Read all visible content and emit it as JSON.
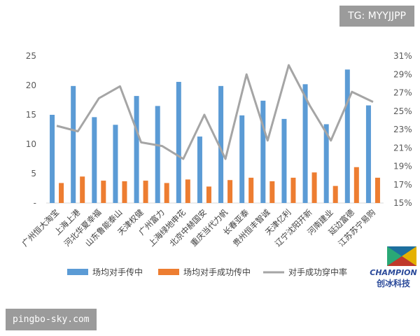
{
  "watermark": {
    "tag": "TG: MYYJJPP",
    "url": "pingbo-sky.com"
  },
  "logo": {
    "name": "CHAMPION",
    "subtitle": "创冰科技"
  },
  "colors": {
    "blue": "#5b9bd5",
    "orange": "#ed7d31",
    "gray": "#a5a5a5"
  },
  "chart_data": {
    "type": "bar",
    "title": "",
    "xlabel": "",
    "ylabel": "",
    "categories": [
      "广州恒大淘宝",
      "上海上港",
      "河北华夏幸福",
      "山东鲁能泰山",
      "天津权健",
      "广州富力",
      "上海绿地申花",
      "北京中赫国安",
      "重庆当代力帆",
      "长春亚泰",
      "贵州恒丰智诚",
      "天津亿利",
      "辽宁沈阳开新",
      "河南建业",
      "延边富德",
      "江苏苏宁易购"
    ],
    "series": [
      {
        "name": "场均对手传中",
        "type": "bar",
        "axis": "left",
        "color": "#5b9bd5",
        "values": [
          15.0,
          19.9,
          14.6,
          13.3,
          18.2,
          16.5,
          20.6,
          11.3,
          19.9,
          14.9,
          17.4,
          14.3,
          20.2,
          13.4,
          22.7,
          16.6
        ]
      },
      {
        "name": "场均对手成功传中",
        "type": "bar",
        "axis": "left",
        "color": "#ed7d31",
        "values": [
          3.4,
          4.5,
          3.8,
          3.7,
          3.8,
          3.4,
          4.0,
          2.8,
          3.9,
          4.3,
          3.7,
          4.3,
          5.2,
          2.9,
          6.1,
          4.3
        ]
      },
      {
        "name": "对手成功穿中率",
        "type": "line",
        "axis": "right",
        "color": "#a5a5a5",
        "values": [
          23.4,
          22.8,
          26.4,
          27.7,
          21.6,
          21.2,
          19.8,
          24.6,
          19.8,
          29.0,
          21.8,
          30.0,
          25.6,
          21.8,
          27.1,
          26.0
        ]
      }
    ],
    "ylim": [
      0,
      25
    ],
    "yticks": [
      0,
      5,
      10,
      15,
      20,
      25
    ],
    "ytick_labels": [
      "-",
      "5",
      "10",
      "15",
      "20",
      "25"
    ],
    "y2lim": [
      15,
      31
    ],
    "y2ticks": [
      15,
      17,
      19,
      21,
      23,
      25,
      27,
      29,
      31
    ],
    "y2tick_labels": [
      "15%",
      "17%",
      "19%",
      "21%",
      "23%",
      "25%",
      "27%",
      "29%",
      "31%"
    ],
    "grid": false,
    "legend": "bottom"
  }
}
